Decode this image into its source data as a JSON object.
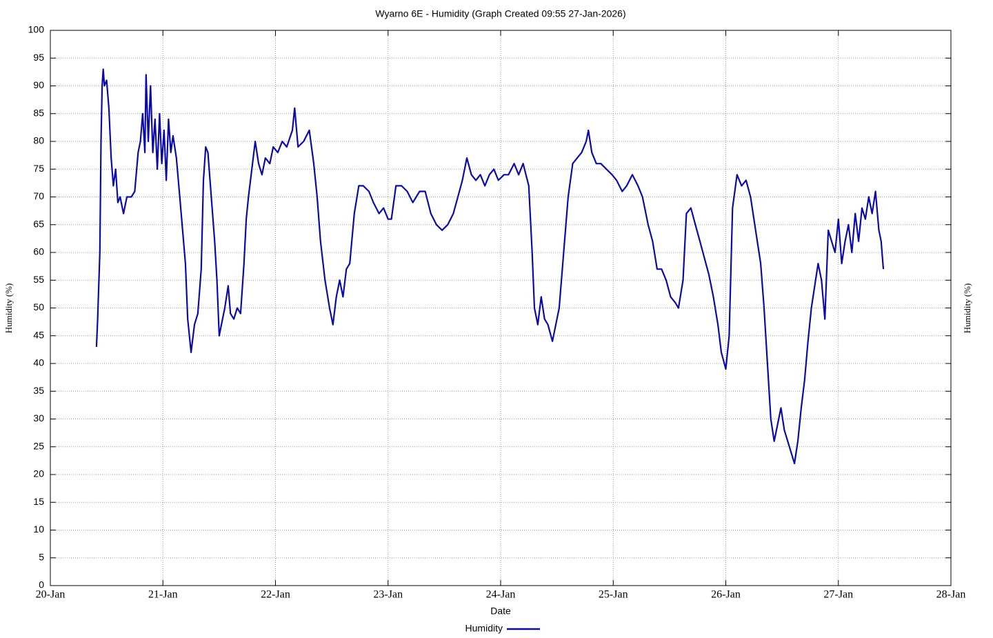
{
  "chart_data": {
    "type": "line",
    "title": "Wyarno 6E - Humidity (Graph Created 09:55 27-Jan-2026)",
    "xlabel": "Date",
    "ylabel": "Humidity (%)",
    "y2label": "Humidity (%)",
    "xlim": [
      0,
      8
    ],
    "xticks": [
      {
        "value": 0,
        "label": "20-Jan"
      },
      {
        "value": 1,
        "label": "21-Jan"
      },
      {
        "value": 2,
        "label": "22-Jan"
      },
      {
        "value": 3,
        "label": "23-Jan"
      },
      {
        "value": 4,
        "label": "24-Jan"
      },
      {
        "value": 5,
        "label": "25-Jan"
      },
      {
        "value": 6,
        "label": "26-Jan"
      },
      {
        "value": 7,
        "label": "27-Jan"
      },
      {
        "value": 8,
        "label": "28-Jan"
      }
    ],
    "ylim": [
      0,
      100
    ],
    "yticks": [
      0,
      5,
      10,
      15,
      20,
      25,
      30,
      35,
      40,
      45,
      50,
      55,
      60,
      65,
      70,
      75,
      80,
      85,
      90,
      95,
      100
    ],
    "grid": true,
    "x": [
      0.41,
      0.42,
      0.44,
      0.45,
      0.46,
      0.47,
      0.48,
      0.5,
      0.52,
      0.54,
      0.56,
      0.58,
      0.6,
      0.62,
      0.65,
      0.68,
      0.72,
      0.75,
      0.78,
      0.8,
      0.82,
      0.84,
      0.85,
      0.87,
      0.89,
      0.91,
      0.93,
      0.95,
      0.97,
      0.99,
      1.01,
      1.03,
      1.05,
      1.07,
      1.09,
      1.12,
      1.15,
      1.2,
      1.22,
      1.25,
      1.28,
      1.31,
      1.34,
      1.36,
      1.38,
      1.4,
      1.43,
      1.46,
      1.48,
      1.5,
      1.52,
      1.55,
      1.58,
      1.6,
      1.63,
      1.66,
      1.69,
      1.72,
      1.74,
      1.76,
      1.79,
      1.82,
      1.85,
      1.88,
      1.91,
      1.95,
      1.98,
      2.02,
      2.06,
      2.1,
      2.15,
      2.17,
      2.2,
      2.25,
      2.3,
      2.34,
      2.37,
      2.4,
      2.44,
      2.48,
      2.51,
      2.54,
      2.57,
      2.6,
      2.63,
      2.66,
      2.7,
      2.74,
      2.78,
      2.83,
      2.87,
      2.92,
      2.96,
      3.0,
      3.03,
      3.07,
      3.12,
      3.17,
      3.22,
      3.28,
      3.33,
      3.38,
      3.43,
      3.48,
      3.53,
      3.58,
      3.62,
      3.66,
      3.7,
      3.74,
      3.78,
      3.82,
      3.86,
      3.9,
      3.94,
      3.98,
      4.03,
      4.07,
      4.12,
      4.16,
      4.2,
      4.25,
      4.28,
      4.3,
      4.33,
      4.36,
      4.39,
      4.42,
      4.46,
      4.49,
      4.52,
      4.56,
      4.6,
      4.64,
      4.68,
      4.72,
      4.76,
      4.78,
      4.81,
      4.85,
      4.89,
      4.94,
      4.99,
      5.03,
      5.08,
      5.12,
      5.17,
      5.22,
      5.26,
      5.31,
      5.35,
      5.39,
      5.43,
      5.47,
      5.51,
      5.55,
      5.58,
      5.62,
      5.65,
      5.69,
      5.73,
      5.77,
      5.81,
      5.85,
      5.89,
      5.93,
      5.96,
      6.0,
      6.03,
      6.06,
      6.1,
      6.14,
      6.18,
      6.22,
      6.25,
      6.28,
      6.31,
      6.34,
      6.37,
      6.4,
      6.43,
      6.46,
      6.49,
      6.52,
      6.55,
      6.58,
      6.61,
      6.64,
      6.67,
      6.7,
      6.73,
      6.76,
      6.79,
      6.82,
      6.85,
      6.88,
      6.91,
      6.94,
      6.97,
      7.0,
      7.03,
      7.06,
      7.09,
      7.12,
      7.15,
      7.18,
      7.21,
      7.24,
      7.27,
      7.3,
      7.33,
      7.36,
      7.38,
      7.4
    ],
    "series": [
      {
        "name": "Humidity",
        "color": "#0a0aa8",
        "values": [
          43,
          48,
          60,
          80,
          90,
          93,
          90,
          91,
          86,
          77,
          72,
          75,
          69,
          70,
          67,
          70,
          70,
          71,
          78,
          80,
          85,
          78,
          92,
          80,
          90,
          78,
          84,
          75,
          85,
          76,
          82,
          73,
          84,
          78,
          81,
          77,
          70,
          58,
          48,
          42,
          47,
          49,
          57,
          73,
          79,
          78,
          70,
          62,
          55,
          45,
          47,
          50,
          54,
          49,
          48,
          50,
          49,
          58,
          66,
          70,
          75,
          80,
          76,
          74,
          77,
          76,
          79,
          78,
          80,
          79,
          82,
          86,
          79,
          80,
          82,
          76,
          70,
          62,
          55,
          50,
          47,
          52,
          55,
          52,
          57,
          58,
          67,
          72,
          72,
          71,
          69,
          67,
          68,
          66,
          66,
          72,
          72,
          71,
          69,
          71,
          71,
          67,
          65,
          64,
          65,
          67,
          70,
          73,
          77,
          74,
          73,
          74,
          72,
          74,
          75,
          73,
          74,
          74,
          76,
          74,
          76,
          72,
          60,
          50,
          47,
          52,
          48,
          47,
          44,
          47,
          50,
          60,
          70,
          76,
          77,
          78,
          80,
          82,
          78,
          76,
          76,
          75,
          74,
          73,
          71,
          72,
          74,
          72,
          70,
          65,
          62,
          57,
          57,
          55,
          52,
          51,
          50,
          55,
          67,
          68,
          65,
          62,
          59,
          56,
          52,
          47,
          42,
          39,
          45,
          68,
          74,
          72,
          73,
          70,
          66,
          62,
          58,
          50,
          40,
          30,
          26,
          29,
          32,
          28,
          26,
          24,
          22,
          26,
          32,
          37,
          44,
          50,
          54,
          58,
          55,
          48,
          64,
          62,
          60,
          66,
          58,
          62,
          65,
          60,
          67,
          62,
          68,
          66,
          70,
          67,
          71,
          64,
          62,
          57
        ]
      }
    ]
  }
}
